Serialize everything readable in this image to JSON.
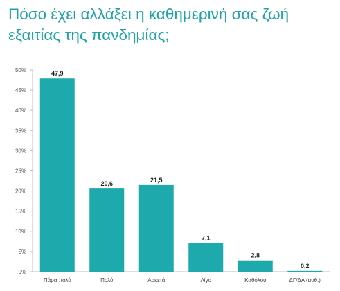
{
  "chart_data": {
    "type": "bar",
    "title_lines": [
      "Πόσο έχει αλλάξει η καθημερινή σας ζωή",
      "εξαιτίας της πανδημίας;"
    ],
    "categories": [
      "Πάρα πολύ",
      "Πολύ",
      "Αρκετά",
      "Λίγο",
      "Καθόλου",
      "ΔΓ/ΔΑ (αυθ.)"
    ],
    "values": [
      47.9,
      20.6,
      21.5,
      7.1,
      2.8,
      0.2
    ],
    "data_labels": [
      "47,9",
      "20,6",
      "21,5",
      "7,1",
      "2,8",
      "0,2"
    ],
    "ylim": [
      0,
      50
    ],
    "yticks": [
      "0%",
      "5%",
      "10%",
      "15%",
      "20%",
      "25%",
      "30%",
      "35%",
      "40%",
      "45%",
      "50%"
    ],
    "bar_color": "#1ea9ac",
    "title_color": "#1fa3a8",
    "grid": false,
    "legend": "none"
  }
}
